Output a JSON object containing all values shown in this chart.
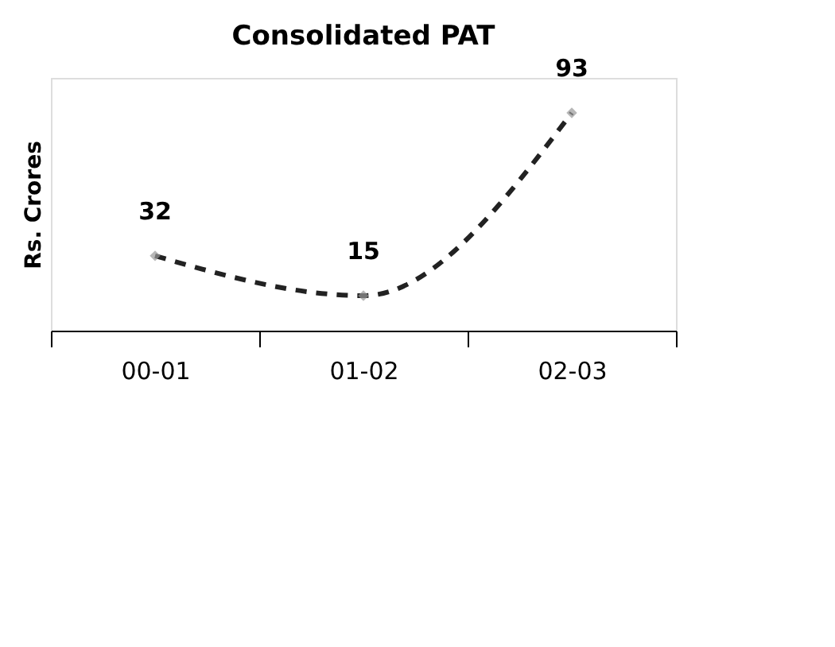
{
  "chart_data": {
    "type": "line",
    "title": "Consolidated PAT",
    "ylabel": "Rs. Crores",
    "categories": [
      "00-01",
      "01-02",
      "02-03"
    ],
    "series": [
      {
        "color": "#222222",
        "values": [
          32,
          15,
          93
        ]
      }
    ],
    "data_labels": true,
    "marker": "diamond",
    "line_style": "dashed",
    "grid": false,
    "legend": false,
    "tick_labels": "x"
  }
}
